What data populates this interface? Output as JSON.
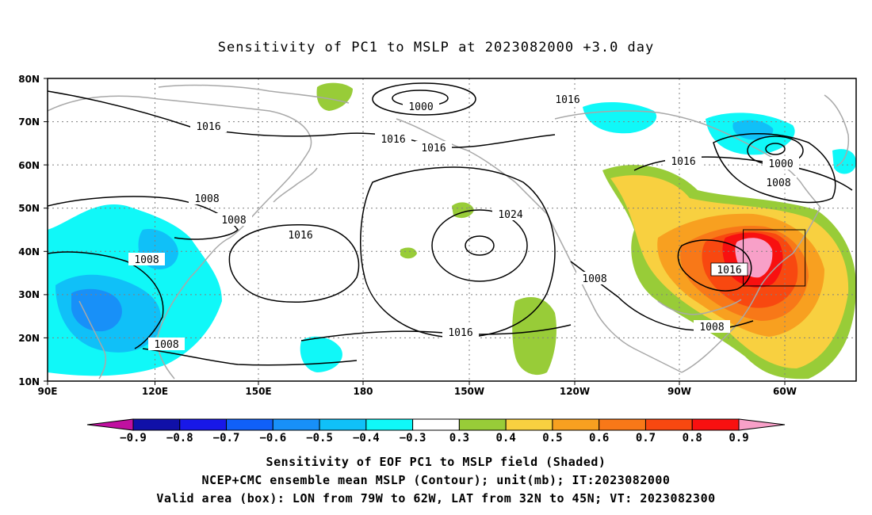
{
  "title": "Sensitivity of PC1 to MSLP at 2023082000 +3.0 day",
  "axes": {
    "lat_labels": [
      "80N",
      "70N",
      "60N",
      "50N",
      "40N",
      "30N",
      "20N",
      "10N"
    ],
    "lon_labels": [
      "90E",
      "120E",
      "150E",
      "180",
      "150W",
      "120W",
      "90W",
      "60W"
    ]
  },
  "contour_labels": [
    {
      "value": "1000",
      "text": "1000"
    },
    {
      "value": "1016",
      "text": "1016"
    },
    {
      "value": "1016",
      "text": "1016"
    },
    {
      "value": "1016",
      "text": "1016"
    },
    {
      "value": "1016",
      "text": "1016"
    },
    {
      "value": "1016",
      "text": "1016"
    },
    {
      "value": "1008",
      "text": "1008"
    },
    {
      "value": "1008",
      "text": "1008"
    },
    {
      "value": "1016",
      "text": "1016"
    },
    {
      "value": "1024",
      "text": "1024"
    },
    {
      "value": "1008",
      "text": "1008"
    },
    {
      "value": "1016",
      "text": "1016"
    },
    {
      "value": "1008",
      "text": "1008"
    },
    {
      "value": "1016",
      "text": "1016"
    },
    {
      "value": "1000",
      "text": "1000"
    },
    {
      "value": "1008",
      "text": "1008"
    },
    {
      "value": "1016",
      "text": "1016"
    },
    {
      "value": "1008",
      "text": "1008"
    },
    {
      "value": "1008",
      "text": "1008"
    }
  ],
  "colorbar": {
    "labels": [
      "-0.9",
      "-0.8",
      "-0.7",
      "-0.6",
      "-0.5",
      "-0.4",
      "-0.3",
      "0.3",
      "0.4",
      "0.5",
      "0.6",
      "0.7",
      "0.8",
      "0.9"
    ],
    "colors": [
      "#1010a8",
      "#1818e8",
      "#1060f8",
      "#1890f8",
      "#10c0f8",
      "#10f8f8",
      "#ffffff",
      "#98cc38",
      "#f8d040",
      "#f8a020",
      "#f87818",
      "#f84810",
      "#f81010"
    ],
    "low_end_color": "#c010a0",
    "high_end_color": "#f8a0c8"
  },
  "valid_box": {
    "lon_min": -79,
    "lon_max": -62,
    "lat_min": 32,
    "lat_max": 45
  },
  "captions": {
    "line1": "Sensitivity of EOF PC1 to MSLP field (Shaded)",
    "line2": "NCEP+CMC ensemble mean MSLP (Contour); unit(mb); IT:2023082000",
    "line3": "Valid area (box): LON from 79W to 62W, LAT from 32N to 45N; VT: 2023082300"
  },
  "colors": {
    "coastline": "#a8a8a8",
    "contour": "#000000",
    "grid": "#808080"
  }
}
